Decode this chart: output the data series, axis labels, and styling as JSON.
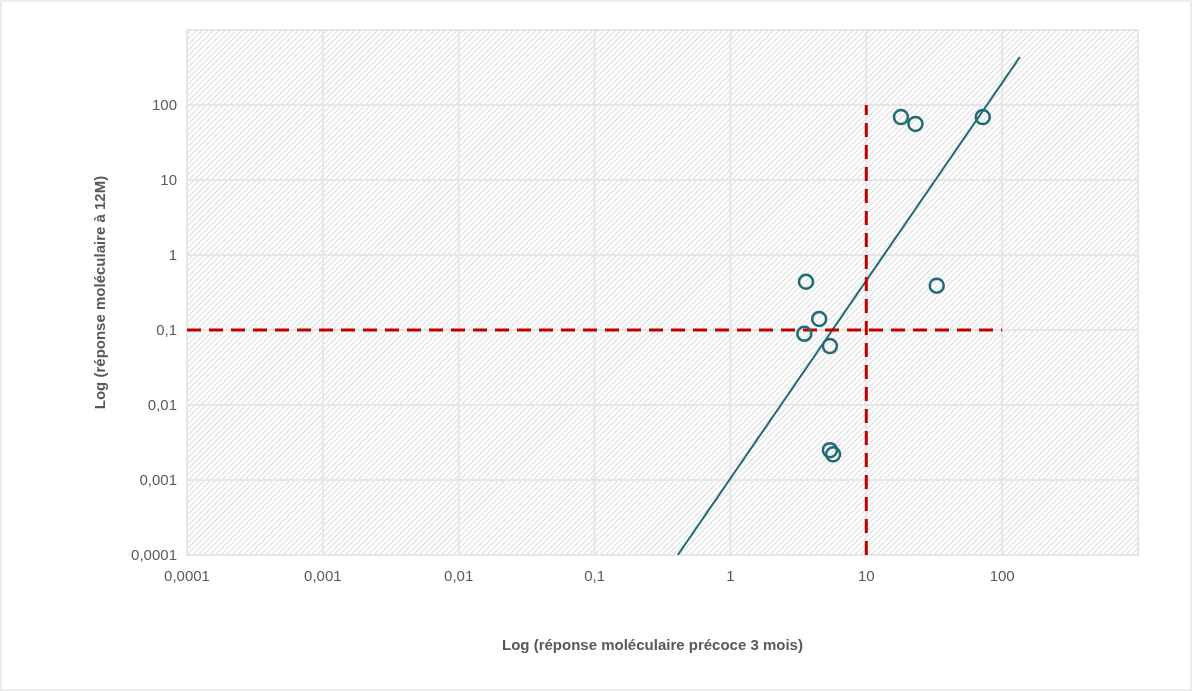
{
  "chart_data": {
    "type": "scatter",
    "xlabel": "Log (réponse moléculaire précoce 3 mois)",
    "ylabel": "Log (réponse moléculaire à 12M)",
    "log": "xy",
    "grid": true,
    "marker": "circle",
    "xlim": [
      0.0001,
      1000
    ],
    "ylim": [
      0.0001,
      1000
    ],
    "xticks": [
      {
        "value": 0.0001,
        "label": "0,0001"
      },
      {
        "value": 0.001,
        "label": "0,001"
      },
      {
        "value": 0.01,
        "label": "0,01"
      },
      {
        "value": 0.1,
        "label": "0,1"
      },
      1,
      10,
      100
    ],
    "yticks": [
      {
        "value": 0.0001,
        "label": "0,0001"
      },
      {
        "value": 0.001,
        "label": "0,001"
      },
      {
        "value": 0.01,
        "label": "0,01"
      },
      {
        "value": 0.1,
        "label": "0,1"
      },
      1,
      10,
      100
    ],
    "x": [
      18,
      23,
      72,
      3.6,
      33,
      4.5,
      3.5,
      5.4,
      5.4,
      5.7
    ],
    "series": [
      {
        "color": "#1f6b75",
        "values": [
          69,
          56,
          69,
          0.44,
          0.39,
          0.14,
          0.089,
          0.061,
          0.0025,
          0.0022
        ]
      },
      {
        "type": "line",
        "color": "#1f6b75",
        "x": [
          0.41,
          135
        ],
        "values": [
          0.0001,
          437
        ],
        "marker": "none",
        "line_style": "solid"
      },
      {
        "type": "line",
        "color": "#c00000",
        "x": [
          0.0001,
          100
        ],
        "values": [
          0.1,
          0.1
        ],
        "marker": "none",
        "line_style": "dashed"
      },
      {
        "type": "line",
        "color": "#c00000",
        "x": [
          10,
          10
        ],
        "values": [
          0.0001,
          100
        ],
        "marker": "none",
        "line_style": "dashed"
      }
    ]
  }
}
